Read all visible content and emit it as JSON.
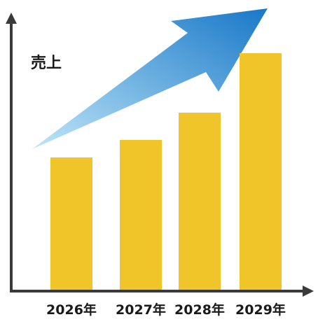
{
  "chart_data": {
    "type": "bar",
    "title": "",
    "xlabel": "",
    "ylabel": "売上",
    "categories": [
      "2026年",
      "2027年",
      "2028年",
      "2029年"
    ],
    "values": [
      191,
      216,
      255,
      340
    ],
    "ylim": [
      0,
      400
    ],
    "trend_arrow": true,
    "grid": false,
    "colors": {
      "bar": "#F0C52A",
      "axis": "#3a3a3a",
      "arrow_start": "#BFE6F8",
      "arrow_end": "#1878C8"
    }
  }
}
